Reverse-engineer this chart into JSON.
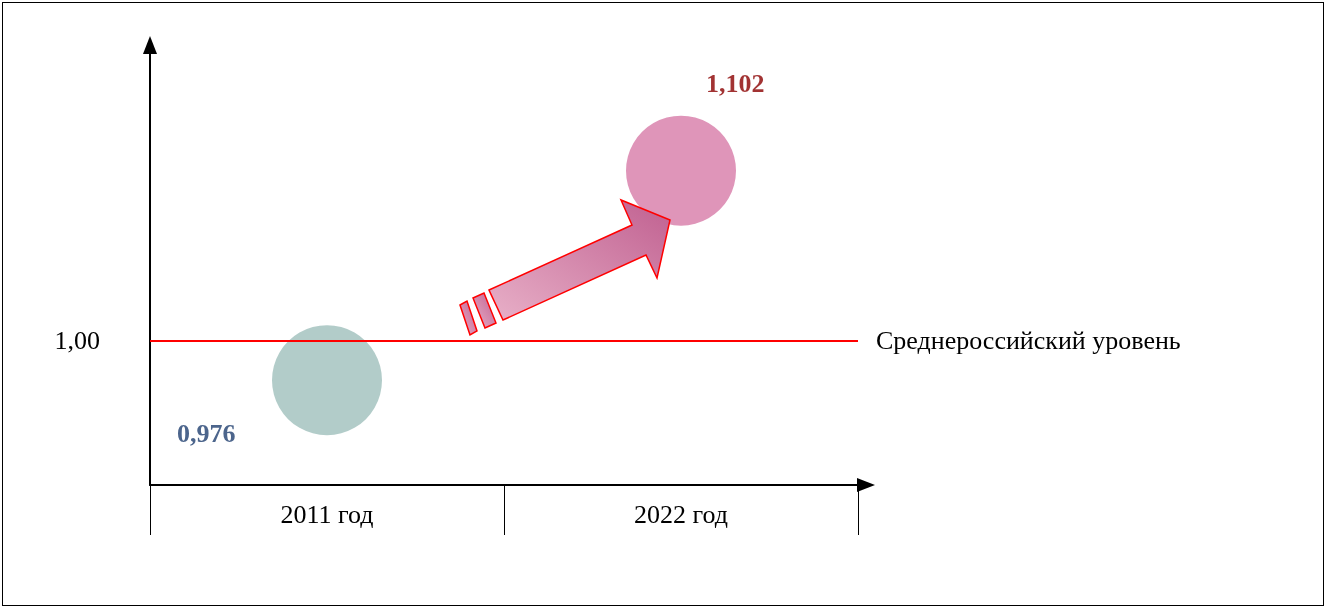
{
  "chart_data": {
    "type": "bubble",
    "categories": [
      "2011 год",
      "2022 год"
    ],
    "values": [
      0.976,
      1.102
    ],
    "sizes": [
      1,
      1
    ],
    "colors": [
      "#9fbfbc",
      "#d77aa8"
    ],
    "value_labels": [
      "0,976",
      "1,102"
    ],
    "annotations": [
      "1,00"
    ],
    "ref_lines": [
      {
        "axis": "y",
        "value": 1,
        "label": "Среднероссийский уровень",
        "color": "#ff0000"
      }
    ],
    "grid": false
  }
}
